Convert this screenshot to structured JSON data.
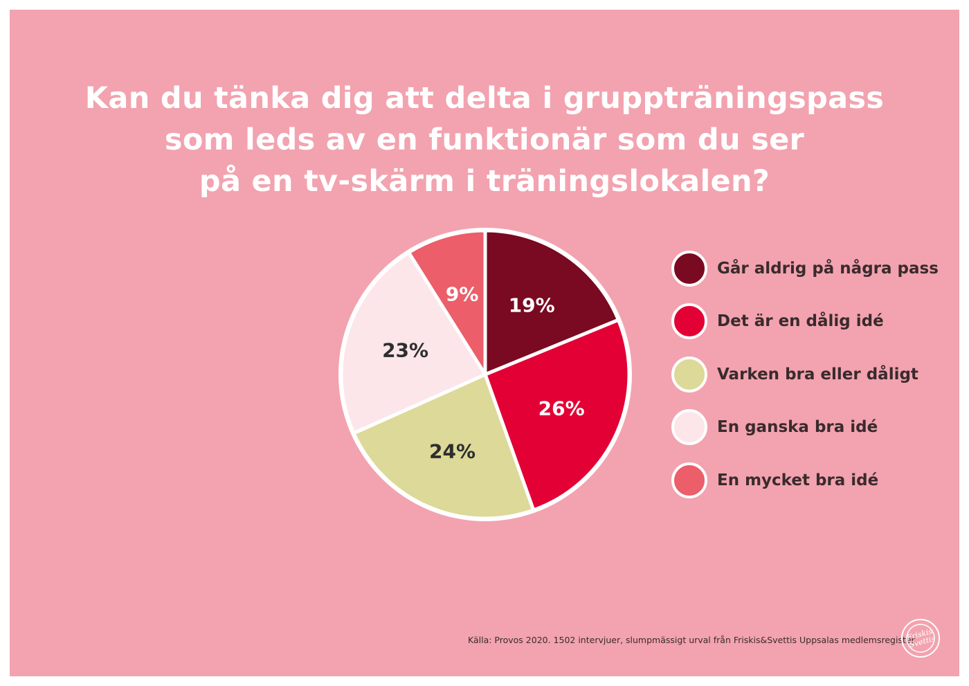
{
  "chart_data": {
    "type": "pie",
    "title_lines": [
      "Kan du tänka dig att delta i gruppträningspass",
      "som leds av en funktionär som du ser",
      "på en tv-skärm i träningslokalen?"
    ],
    "categories": [
      "Går aldrig på några pass",
      "Det är en dålig idé",
      "Varken bra eller dåligt",
      "En ganska bra idé",
      "En mycket bra idé"
    ],
    "values": [
      19,
      26,
      24,
      23,
      9
    ],
    "labels": [
      "19%",
      "26%",
      "24%",
      "23%",
      "9%"
    ],
    "colors": [
      "#7a0a21",
      "#e20035",
      "#dcd999",
      "#fce6ea",
      "#eb5e6a"
    ],
    "label_colors": [
      "#ffffff",
      "#ffffff",
      "#2e2e2e",
      "#2e2e2e",
      "#ffffff"
    ],
    "legend_position": "right"
  },
  "footer": {
    "source": "Källa: Provos 2020. 1502 intervjuer, slumpmässigt urval från Friskis&Svettis Uppsalas medlemsregister.",
    "logo_text": "Friskis Svettis"
  }
}
